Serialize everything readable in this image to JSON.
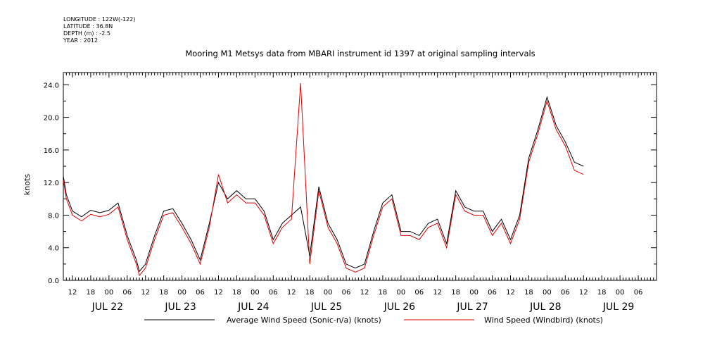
{
  "metadata": {
    "longitude": "LONGITUDE : 122W(-122)",
    "latitude": "LATITUDE : 36.8N",
    "depth": "DEPTH (m) : -2.5",
    "year": "YEAR : 2012"
  },
  "chart_data": {
    "type": "line",
    "title": "Mooring M1 Metsys data from MBARI instrument id 1397 at original sampling intervals",
    "ylabel": "knots",
    "ylim": [
      0,
      25.5
    ],
    "yticks": [
      "0.0",
      "4.0",
      "8.0",
      "12.0",
      "16.0",
      "20.0",
      "24.0"
    ],
    "x_range_hours": [
      "2012-07-21T09:00",
      "2012-07-29T12:00"
    ],
    "hour_ticks": [
      "12",
      "18",
      "00",
      "06",
      "12",
      "18",
      "00",
      "06",
      "12",
      "18",
      "00",
      "06",
      "12",
      "18",
      "00",
      "06",
      "12",
      "18",
      "00",
      "06",
      "12",
      "18",
      "00",
      "06",
      "12",
      "18",
      "00",
      "06",
      "12",
      "18",
      "00",
      "06"
    ],
    "date_labels": [
      "JUL 22",
      "JUL 23",
      "JUL 24",
      "JUL 25",
      "JUL 26",
      "JUL 27",
      "JUL 28",
      "JUL 29"
    ],
    "legend_position": "bottom",
    "series": [
      {
        "name": "Average Wind Speed (Sonic-n/a) (knots)",
        "color": "#000000",
        "points": [
          [
            "07-21 09:00",
            12.8
          ],
          [
            "07-21 10:00",
            10.5
          ],
          [
            "07-21 12:00",
            8.5
          ],
          [
            "07-21 15:00",
            7.8
          ],
          [
            "07-21 18:00",
            8.6
          ],
          [
            "07-21 21:00",
            8.3
          ],
          [
            "07-22 00:00",
            8.6
          ],
          [
            "07-22 03:00",
            9.5
          ],
          [
            "07-22 06:00",
            5.5
          ],
          [
            "07-22 09:00",
            2.5
          ],
          [
            "07-22 10:00",
            1.1
          ],
          [
            "07-22 12:00",
            2.0
          ],
          [
            "07-22 15:00",
            5.5
          ],
          [
            "07-22 18:00",
            8.5
          ],
          [
            "07-22 21:00",
            8.8
          ],
          [
            "07-23 00:00",
            7.0
          ],
          [
            "07-23 03:00",
            5.0
          ],
          [
            "07-23 06:00",
            2.5
          ],
          [
            "07-23 09:00",
            7.0
          ],
          [
            "07-23 12:00",
            12.0
          ],
          [
            "07-23 15:00",
            10.0
          ],
          [
            "07-23 18:00",
            11.0
          ],
          [
            "07-23 21:00",
            10.0
          ],
          [
            "07-24 00:00",
            10.0
          ],
          [
            "07-24 03:00",
            8.5
          ],
          [
            "07-24 06:00",
            5.0
          ],
          [
            "07-24 09:00",
            7.0
          ],
          [
            "07-24 12:00",
            8.0
          ],
          [
            "07-24 15:00",
            9.0
          ],
          [
            "07-24 18:00",
            3.0
          ],
          [
            "07-24 21:00",
            11.5
          ],
          [
            "07-25 00:00",
            7.0
          ],
          [
            "07-25 03:00",
            5.0
          ],
          [
            "07-25 06:00",
            2.0
          ],
          [
            "07-25 09:00",
            1.5
          ],
          [
            "07-25 12:00",
            2.0
          ],
          [
            "07-25 15:00",
            6.0
          ],
          [
            "07-25 18:00",
            9.5
          ],
          [
            "07-25 21:00",
            10.5
          ],
          [
            "07-26 00:00",
            6.0
          ],
          [
            "07-26 03:00",
            6.0
          ],
          [
            "07-26 06:00",
            5.5
          ],
          [
            "07-26 09:00",
            7.0
          ],
          [
            "07-26 12:00",
            7.5
          ],
          [
            "07-26 15:00",
            4.5
          ],
          [
            "07-26 18:00",
            11.0
          ],
          [
            "07-26 21:00",
            9.0
          ],
          [
            "07-27 00:00",
            8.5
          ],
          [
            "07-27 03:00",
            8.5
          ],
          [
            "07-27 06:00",
            6.0
          ],
          [
            "07-27 09:00",
            7.5
          ],
          [
            "07-27 12:00",
            5.0
          ],
          [
            "07-27 15:00",
            8.0
          ],
          [
            "07-27 18:00",
            15.0
          ],
          [
            "07-27 21:00",
            18.5
          ],
          [
            "07-28 00:00",
            22.5
          ],
          [
            "07-28 03:00",
            19.0
          ],
          [
            "07-28 06:00",
            17.0
          ],
          [
            "07-28 09:00",
            14.5
          ],
          [
            "07-28 12:00",
            14.0
          ]
        ]
      },
      {
        "name": "Wind Speed (Windbird) (knots)",
        "color": "#dd0000",
        "points": [
          [
            "07-21 09:00",
            12.3
          ],
          [
            "07-21 10:00",
            10.0
          ],
          [
            "07-21 12:00",
            8.0
          ],
          [
            "07-21 15:00",
            7.3
          ],
          [
            "07-21 18:00",
            8.1
          ],
          [
            "07-21 21:00",
            7.8
          ],
          [
            "07-22 00:00",
            8.1
          ],
          [
            "07-22 03:00",
            9.0
          ],
          [
            "07-22 06:00",
            5.0
          ],
          [
            "07-22 09:00",
            2.0
          ],
          [
            "07-22 10:00",
            0.6
          ],
          [
            "07-22 12:00",
            1.5
          ],
          [
            "07-22 15:00",
            5.0
          ],
          [
            "07-22 18:00",
            8.0
          ],
          [
            "07-22 21:00",
            8.3
          ],
          [
            "07-23 00:00",
            6.5
          ],
          [
            "07-23 03:00",
            4.5
          ],
          [
            "07-23 06:00",
            2.0
          ],
          [
            "07-23 09:00",
            6.5
          ],
          [
            "07-23 12:00",
            13.0
          ],
          [
            "07-23 15:00",
            9.5
          ],
          [
            "07-23 18:00",
            10.5
          ],
          [
            "07-23 21:00",
            9.5
          ],
          [
            "07-24 00:00",
            9.5
          ],
          [
            "07-24 03:00",
            8.0
          ],
          [
            "07-24 06:00",
            4.5
          ],
          [
            "07-24 09:00",
            6.5
          ],
          [
            "07-24 12:00",
            7.5
          ],
          [
            "07-24 15:00",
            24.2
          ],
          [
            "07-24 18:00",
            2.0
          ],
          [
            "07-24 21:00",
            11.0
          ],
          [
            "07-25 00:00",
            6.5
          ],
          [
            "07-25 03:00",
            4.5
          ],
          [
            "07-25 06:00",
            1.5
          ],
          [
            "07-25 09:00",
            1.0
          ],
          [
            "07-25 12:00",
            1.5
          ],
          [
            "07-25 15:00",
            5.5
          ],
          [
            "07-25 18:00",
            9.0
          ],
          [
            "07-25 21:00",
            10.0
          ],
          [
            "07-26 00:00",
            5.5
          ],
          [
            "07-26 03:00",
            5.5
          ],
          [
            "07-26 06:00",
            5.0
          ],
          [
            "07-26 09:00",
            6.5
          ],
          [
            "07-26 12:00",
            7.0
          ],
          [
            "07-26 15:00",
            4.0
          ],
          [
            "07-26 18:00",
            10.5
          ],
          [
            "07-26 21:00",
            8.5
          ],
          [
            "07-27 00:00",
            8.0
          ],
          [
            "07-27 03:00",
            8.0
          ],
          [
            "07-27 06:00",
            5.5
          ],
          [
            "07-27 09:00",
            7.0
          ],
          [
            "07-27 12:00",
            4.5
          ],
          [
            "07-27 15:00",
            7.5
          ],
          [
            "07-27 18:00",
            14.5
          ],
          [
            "07-27 21:00",
            18.0
          ],
          [
            "07-28 00:00",
            22.0
          ],
          [
            "07-28 03:00",
            18.5
          ],
          [
            "07-28 06:00",
            16.5
          ],
          [
            "07-28 09:00",
            13.5
          ],
          [
            "07-28 12:00",
            13.0
          ]
        ]
      }
    ]
  }
}
